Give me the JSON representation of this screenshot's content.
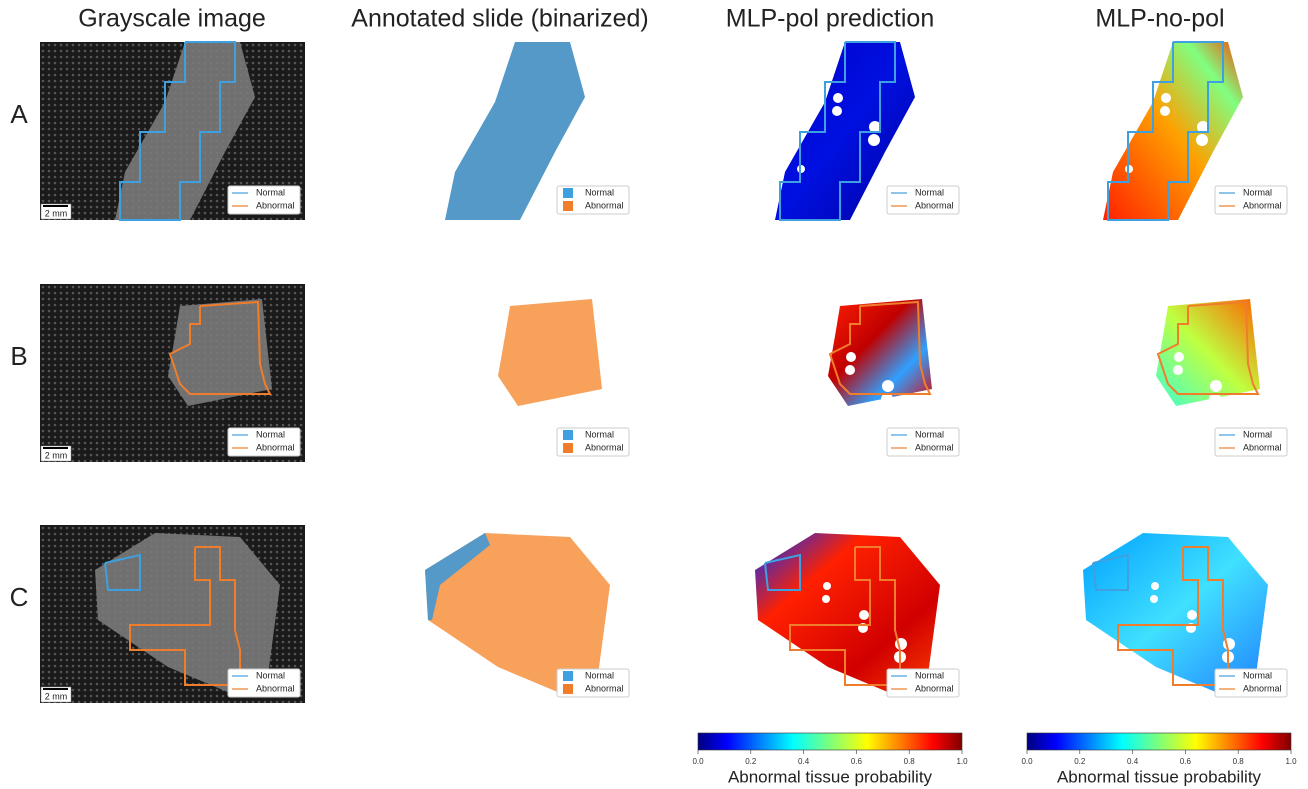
{
  "columns": [
    "Grayscale image",
    "Annotated slide (binarized)",
    "MLP-pol prediction",
    "MLP-no-pol"
  ],
  "rows": [
    "A",
    "B",
    "C"
  ],
  "legend": [
    "Normal",
    "Abnormal"
  ],
  "scale_bar": "2 mm",
  "colorbars": [
    {
      "ticks": [
        {
          "value": 0,
          "label": "0.0"
        },
        0.2,
        0.4,
        0.6,
        0.8,
        {
          "value": 1,
          "label": "1.0"
        }
      ],
      "label": "Abnormal tissue probability"
    },
    {
      "ticks": [
        {
          "value": 0,
          "label": "0.0"
        },
        0.2,
        0.4,
        0.6,
        0.8,
        {
          "value": 1,
          "label": "1.0"
        }
      ],
      "label": "Abnormal tissue probability"
    }
  ]
}
